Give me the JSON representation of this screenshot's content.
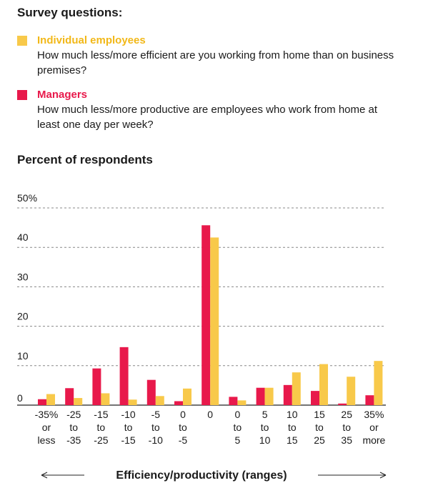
{
  "survey": {
    "title": "Survey questions:",
    "employees": {
      "name": "Individual employees",
      "question": "How much less/more efficient are you working from home than on business premises?"
    },
    "managers": {
      "name": "Managers",
      "question": "How much less/more productive are employees who work from home at least one day per week?"
    }
  },
  "section_title": "Percent of respondents",
  "colors": {
    "managers": "#e8194b",
    "employees": "#f8c94a",
    "grid": "#888888"
  },
  "chart_data": {
    "type": "bar",
    "ylim": [
      0,
      50
    ],
    "y_ticks": [
      "0",
      "10",
      "20",
      "30",
      "40",
      "50%"
    ],
    "xlabel": "Efficiency/productivity (ranges)",
    "categories": [
      [
        "-35%",
        "or",
        "less"
      ],
      [
        "-25",
        "to",
        "-35"
      ],
      [
        "-15",
        "to",
        "-25"
      ],
      [
        "-10",
        "to",
        "-15"
      ],
      [
        "-5",
        "to",
        "-10"
      ],
      [
        "0",
        "to",
        "-5"
      ],
      [
        "0",
        "",
        ""
      ],
      [
        "0",
        "to",
        "5"
      ],
      [
        "5",
        "to",
        "10"
      ],
      [
        "10",
        "to",
        "15"
      ],
      [
        "15",
        "to",
        "25"
      ],
      [
        "25",
        "to",
        "35"
      ],
      [
        "35%",
        "or",
        "more"
      ]
    ],
    "series": [
      {
        "name": "Managers",
        "values": [
          1.5,
          4.3,
          9.3,
          14.7,
          6.4,
          1.0,
          45.6,
          2.1,
          4.4,
          5.1,
          3.6,
          0.4,
          2.5
        ]
      },
      {
        "name": "Individual employees",
        "values": [
          2.8,
          1.8,
          3.0,
          1.4,
          2.3,
          4.2,
          42.5,
          1.2,
          4.4,
          8.3,
          10.4,
          7.2,
          11.2
        ]
      }
    ]
  }
}
